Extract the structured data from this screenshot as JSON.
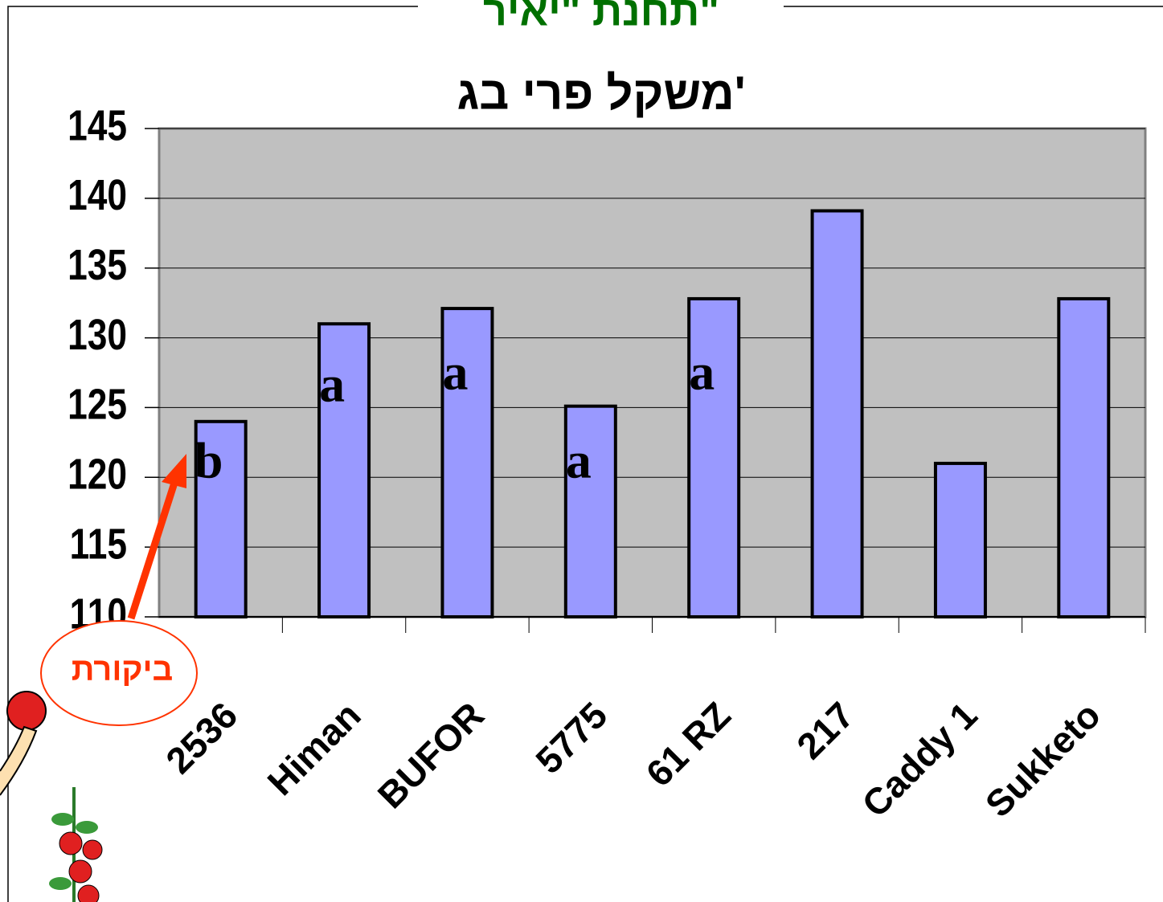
{
  "chart_data": {
    "type": "bar",
    "title": "תחנת \"יאיר\"",
    "subtitle": "משקל פרי בג'",
    "categories": [
      "2536",
      "Himan",
      "BUFOR",
      "5775",
      "61 RZ",
      "217",
      "Caddy 1",
      "Sukketo"
    ],
    "values": [
      124.0,
      131.0,
      132.1,
      125.1,
      132.8,
      139.1,
      121.0,
      132.8
    ],
    "value_labels": [
      "b",
      "a",
      "a",
      "a",
      "a",
      null,
      null,
      null
    ],
    "annotation": "ביקורת",
    "color": "#9999ff",
    "ylim": [
      110,
      145
    ],
    "yticks": [
      110,
      115,
      120,
      125,
      130,
      135,
      140,
      145
    ],
    "grid": true
  }
}
